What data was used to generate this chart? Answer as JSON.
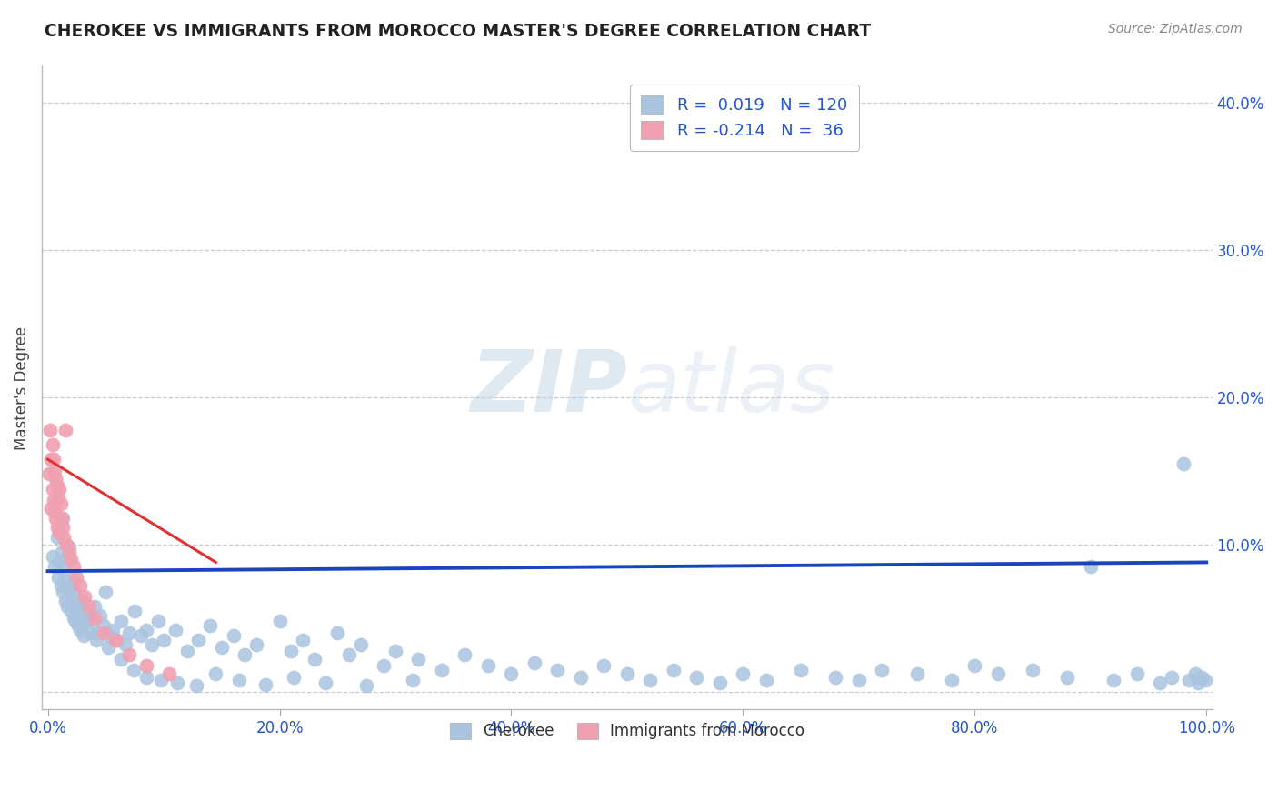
{
  "title": "CHEROKEE VS IMMIGRANTS FROM MOROCCO MASTER'S DEGREE CORRELATION CHART",
  "source": "Source: ZipAtlas.com",
  "ylabel": "Master's Degree",
  "legend_label1": "Cherokee",
  "legend_label2": "Immigrants from Morocco",
  "r1": 0.019,
  "n1": 120,
  "r2": -0.214,
  "n2": 36,
  "xlim": [
    -0.005,
    1.005
  ],
  "ylim": [
    -0.012,
    0.425
  ],
  "xticks": [
    0.0,
    0.2,
    0.4,
    0.6,
    0.8,
    1.0
  ],
  "yticks": [
    0.0,
    0.1,
    0.2,
    0.3,
    0.4
  ],
  "xtick_labels": [
    "0.0%",
    "20.0%",
    "40.0%",
    "60.0%",
    "80.0%",
    "100.0%"
  ],
  "ytick_labels": [
    "",
    "10.0%",
    "20.0%",
    "30.0%",
    "40.0%"
  ],
  "color_blue": "#aac4e0",
  "color_pink": "#f0a0b0",
  "color_line_blue": "#1a44bb",
  "color_line_pink": "#dd3333",
  "background": "#ffffff",
  "watermark_zip": "ZIP",
  "watermark_atlas": "atlas",
  "blue_scatter_x": [
    0.004,
    0.006,
    0.008,
    0.009,
    0.01,
    0.011,
    0.012,
    0.013,
    0.014,
    0.015,
    0.015,
    0.016,
    0.017,
    0.018,
    0.019,
    0.02,
    0.021,
    0.022,
    0.023,
    0.024,
    0.025,
    0.026,
    0.027,
    0.028,
    0.03,
    0.031,
    0.033,
    0.035,
    0.037,
    0.04,
    0.042,
    0.045,
    0.048,
    0.05,
    0.053,
    0.056,
    0.06,
    0.063,
    0.067,
    0.07,
    0.075,
    0.08,
    0.085,
    0.09,
    0.095,
    0.1,
    0.11,
    0.12,
    0.13,
    0.14,
    0.15,
    0.16,
    0.17,
    0.18,
    0.2,
    0.21,
    0.22,
    0.23,
    0.25,
    0.26,
    0.27,
    0.29,
    0.3,
    0.32,
    0.34,
    0.36,
    0.38,
    0.4,
    0.42,
    0.44,
    0.46,
    0.48,
    0.5,
    0.52,
    0.54,
    0.56,
    0.58,
    0.6,
    0.62,
    0.65,
    0.68,
    0.7,
    0.72,
    0.75,
    0.78,
    0.8,
    0.82,
    0.85,
    0.88,
    0.9,
    0.92,
    0.94,
    0.96,
    0.97,
    0.98,
    0.985,
    0.99,
    0.993,
    0.996,
    0.999,
    0.013,
    0.018,
    0.022,
    0.028,
    0.035,
    0.043,
    0.052,
    0.063,
    0.074,
    0.085,
    0.098,
    0.112,
    0.128,
    0.145,
    0.165,
    0.188,
    0.212,
    0.24,
    0.275,
    0.315
  ],
  "blue_scatter_y": [
    0.092,
    0.085,
    0.105,
    0.078,
    0.088,
    0.072,
    0.095,
    0.068,
    0.082,
    0.075,
    0.062,
    0.09,
    0.058,
    0.07,
    0.065,
    0.055,
    0.06,
    0.05,
    0.068,
    0.048,
    0.058,
    0.045,
    0.052,
    0.042,
    0.062,
    0.038,
    0.055,
    0.048,
    0.04,
    0.058,
    0.035,
    0.052,
    0.045,
    0.068,
    0.038,
    0.042,
    0.035,
    0.048,
    0.032,
    0.04,
    0.055,
    0.038,
    0.042,
    0.032,
    0.048,
    0.035,
    0.042,
    0.028,
    0.035,
    0.045,
    0.03,
    0.038,
    0.025,
    0.032,
    0.048,
    0.028,
    0.035,
    0.022,
    0.04,
    0.025,
    0.032,
    0.018,
    0.028,
    0.022,
    0.015,
    0.025,
    0.018,
    0.012,
    0.02,
    0.015,
    0.01,
    0.018,
    0.012,
    0.008,
    0.015,
    0.01,
    0.006,
    0.012,
    0.008,
    0.015,
    0.01,
    0.008,
    0.015,
    0.012,
    0.008,
    0.018,
    0.012,
    0.015,
    0.01,
    0.085,
    0.008,
    0.012,
    0.006,
    0.01,
    0.155,
    0.008,
    0.012,
    0.006,
    0.01,
    0.008,
    0.118,
    0.098,
    0.075,
    0.062,
    0.05,
    0.04,
    0.03,
    0.022,
    0.015,
    0.01,
    0.008,
    0.006,
    0.004,
    0.012,
    0.008,
    0.005,
    0.01,
    0.006,
    0.004,
    0.008
  ],
  "pink_scatter_x": [
    0.001,
    0.002,
    0.003,
    0.003,
    0.004,
    0.004,
    0.005,
    0.005,
    0.006,
    0.006,
    0.007,
    0.007,
    0.008,
    0.008,
    0.009,
    0.01,
    0.01,
    0.011,
    0.012,
    0.013,
    0.014,
    0.015,
    0.016,
    0.018,
    0.02,
    0.022,
    0.025,
    0.028,
    0.032,
    0.036,
    0.04,
    0.048,
    0.058,
    0.07,
    0.085,
    0.105
  ],
  "pink_scatter_y": [
    0.148,
    0.178,
    0.158,
    0.125,
    0.168,
    0.138,
    0.158,
    0.13,
    0.15,
    0.122,
    0.145,
    0.118,
    0.14,
    0.112,
    0.132,
    0.138,
    0.108,
    0.128,
    0.118,
    0.112,
    0.105,
    0.178,
    0.1,
    0.095,
    0.09,
    0.085,
    0.078,
    0.072,
    0.065,
    0.058,
    0.05,
    0.04,
    0.035,
    0.025,
    0.018,
    0.012
  ],
  "blue_trend_x": [
    0.0,
    1.0
  ],
  "blue_trend_y": [
    0.082,
    0.088
  ],
  "pink_trend_x": [
    0.0,
    0.145
  ],
  "pink_trend_y": [
    0.158,
    0.088
  ]
}
